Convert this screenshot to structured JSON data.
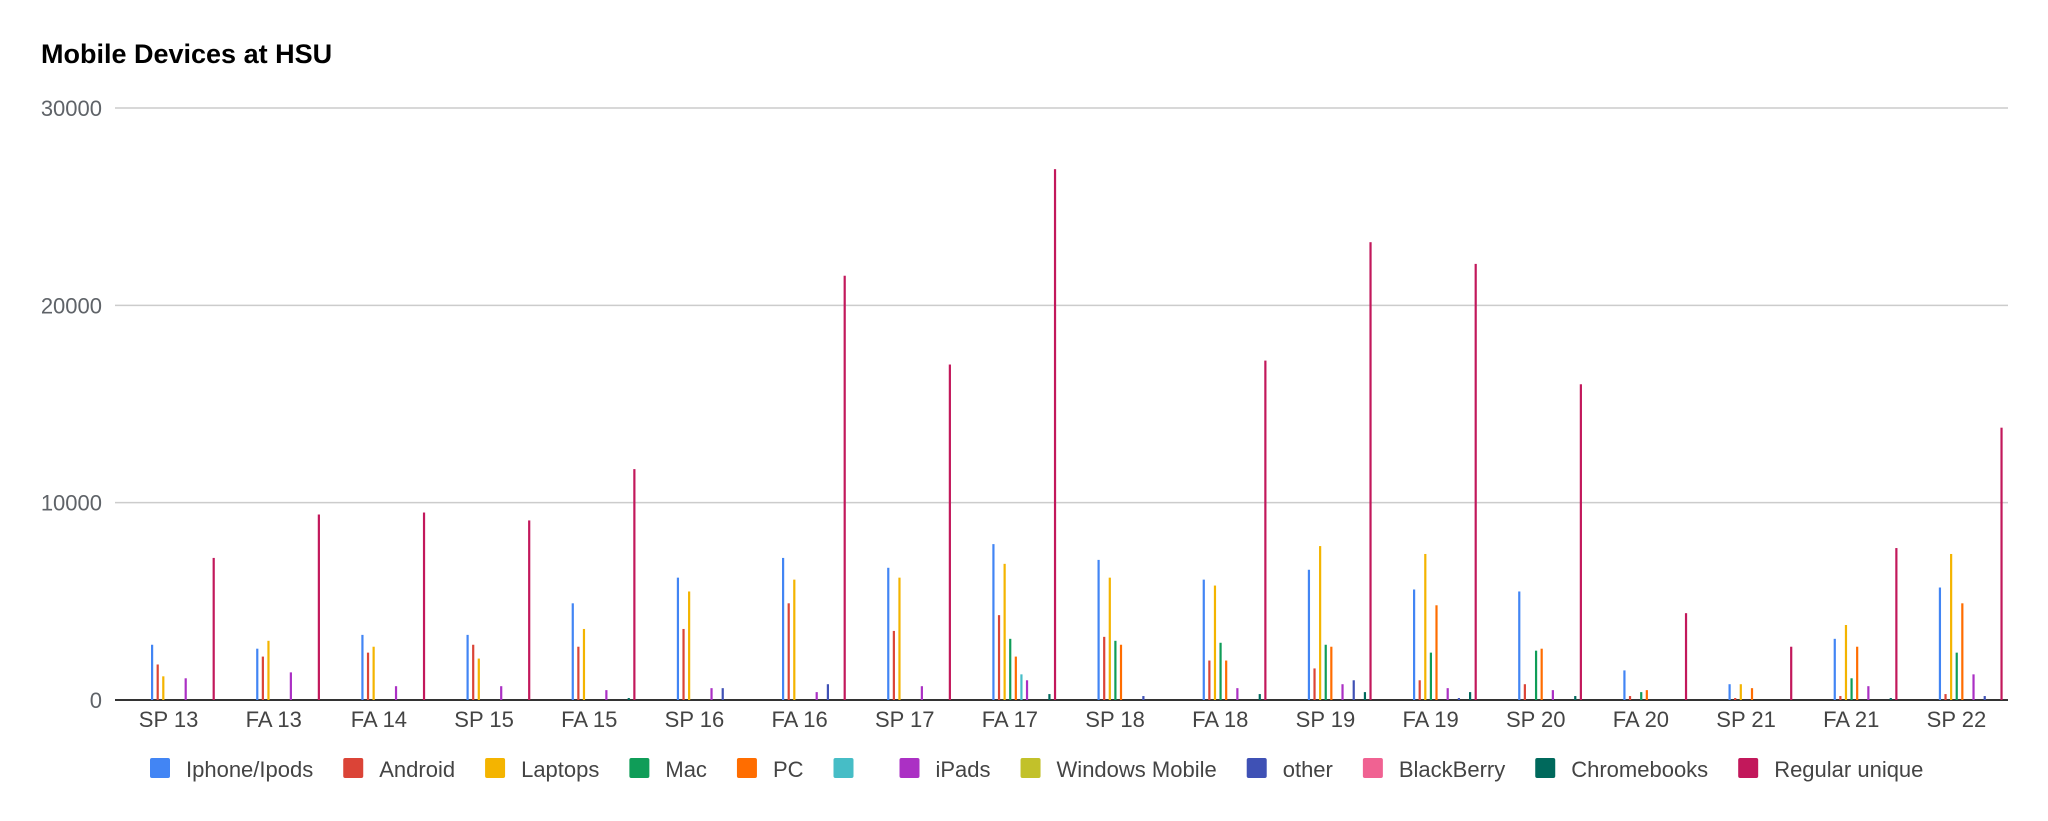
{
  "chart_data": {
    "type": "bar",
    "title": "Mobile Devices at HSU",
    "xlabel": "",
    "ylabel": "",
    "ylim": [
      0,
      30000
    ],
    "yticks": [
      0,
      10000,
      20000,
      30000
    ],
    "grid": true,
    "legend_position": "bottom",
    "categories": [
      "SP 13",
      "FA 13",
      "FA 14",
      "SP 15",
      "FA 15",
      "SP 16",
      "FA 16",
      "SP 17",
      "FA 17",
      "SP 18",
      "FA 18",
      "SP 19",
      "FA 19",
      "SP 20",
      "FA 20",
      "SP 21",
      "FA 21",
      "SP 22"
    ],
    "series": [
      {
        "name": "Iphone/Ipods",
        "color": "#4285f4",
        "values": [
          2800,
          2600,
          3300,
          3300,
          4900,
          6200,
          7200,
          6700,
          7900,
          7100,
          6100,
          6600,
          5600,
          5500,
          1500,
          800,
          3100,
          5700
        ]
      },
      {
        "name": "Android",
        "color": "#db4437",
        "values": [
          1800,
          2200,
          2400,
          2800,
          2700,
          3600,
          4900,
          3500,
          4300,
          3200,
          2000,
          1600,
          1000,
          800,
          200,
          100,
          200,
          300
        ]
      },
      {
        "name": "Laptops",
        "color": "#f4b400",
        "values": [
          1200,
          3000,
          2700,
          2100,
          3600,
          5500,
          6100,
          6200,
          6900,
          6200,
          5800,
          7800,
          7400,
          0,
          0,
          800,
          3800,
          7400
        ]
      },
      {
        "name": "Mac",
        "color": "#0f9d58",
        "values": [
          0,
          0,
          0,
          0,
          0,
          0,
          0,
          0,
          3100,
          3000,
          2900,
          2800,
          2400,
          2500,
          400,
          0,
          1100,
          2400
        ]
      },
      {
        "name": "PC",
        "color": "#ff6d00",
        "values": [
          0,
          0,
          0,
          0,
          0,
          0,
          0,
          0,
          2200,
          2800,
          2000,
          2700,
          4800,
          2600,
          500,
          600,
          2700,
          4900
        ]
      },
      {
        "name": "",
        "color": "#46bdc6",
        "values": [
          0,
          0,
          0,
          0,
          0,
          0,
          0,
          0,
          1300,
          0,
          0,
          0,
          0,
          0,
          0,
          0,
          0,
          0
        ]
      },
      {
        "name": "iPads",
        "color": "#ab30c4",
        "values": [
          1100,
          1400,
          700,
          700,
          500,
          600,
          400,
          700,
          1000,
          0,
          600,
          800,
          600,
          500,
          0,
          0,
          700,
          1300
        ]
      },
      {
        "name": "Windows Mobile",
        "color": "#c2c12a",
        "values": [
          0,
          0,
          0,
          0,
          0,
          0,
          0,
          0,
          0,
          0,
          0,
          0,
          0,
          0,
          0,
          0,
          0,
          0
        ]
      },
      {
        "name": "other",
        "color": "#3f51b5",
        "values": [
          0,
          0,
          0,
          0,
          0,
          600,
          800,
          0,
          0,
          200,
          0,
          1000,
          100,
          0,
          0,
          0,
          0,
          200
        ]
      },
      {
        "name": "BlackBerry",
        "color": "#f06292",
        "values": [
          0,
          0,
          0,
          0,
          0,
          0,
          0,
          0,
          0,
          0,
          0,
          0,
          0,
          0,
          0,
          0,
          0,
          0
        ]
      },
      {
        "name": "Chromebooks",
        "color": "#00695c",
        "values": [
          0,
          0,
          0,
          0,
          100,
          0,
          0,
          0,
          300,
          0,
          300,
          400,
          400,
          200,
          0,
          0,
          100,
          0
        ]
      },
      {
        "name": "Regular unique",
        "color": "#c2185b",
        "values": [
          7200,
          9400,
          9500,
          9100,
          11700,
          0,
          21500,
          17000,
          26900,
          0,
          17200,
          23200,
          22100,
          16000,
          4400,
          2700,
          7700,
          13800
        ]
      }
    ],
    "legend": [
      {
        "label": "Iphone/Ipods",
        "color": "#4285f4"
      },
      {
        "label": "Android",
        "color": "#db4437"
      },
      {
        "label": "Laptops",
        "color": "#f4b400"
      },
      {
        "label": "Mac",
        "color": "#0f9d58"
      },
      {
        "label": "PC",
        "color": "#ff6d00"
      },
      {
        "label": "",
        "color": "#46bdc6"
      },
      {
        "label": "iPads",
        "color": "#ab30c4"
      },
      {
        "label": "Windows Mobile",
        "color": "#c2c12a"
      },
      {
        "label": "other",
        "color": "#3f51b5"
      },
      {
        "label": "BlackBerry",
        "color": "#f06292"
      },
      {
        "label": "Chromebooks",
        "color": "#00695c"
      },
      {
        "label": "Regular unique",
        "color": "#c2185b"
      }
    ]
  }
}
